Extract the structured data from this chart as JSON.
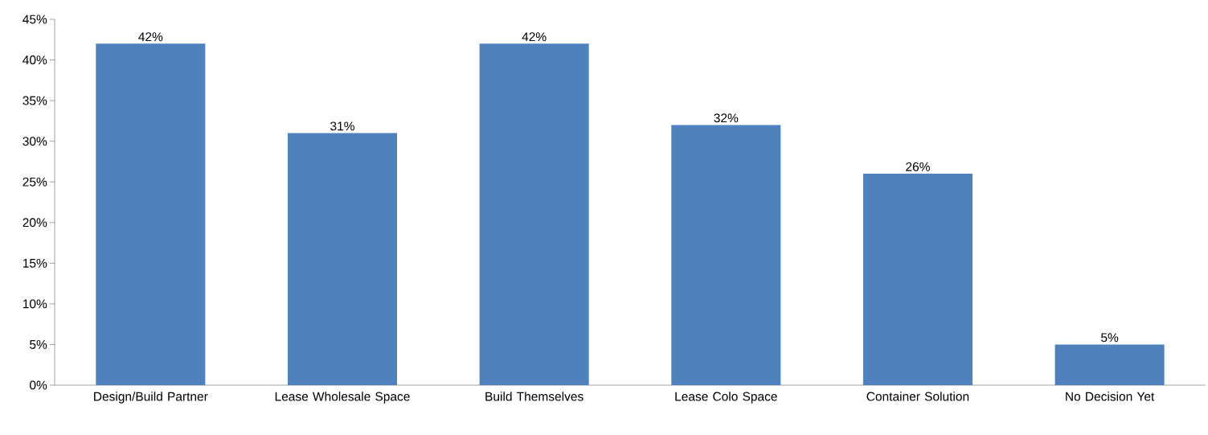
{
  "chart_data": {
    "type": "bar",
    "categories": [
      "Design/Build Partner",
      "Lease Wholesale Space",
      "Build Themselves",
      "Lease Colo Space",
      "Container Solution",
      "No Decision Yet"
    ],
    "values": [
      42,
      31,
      42,
      32,
      26,
      5
    ],
    "value_labels": [
      "42%",
      "31%",
      "42%",
      "32%",
      "26%",
      "5%"
    ],
    "color": "#4f81bd",
    "ylim": [
      0,
      45
    ],
    "yticks": [
      {
        "value": 0,
        "label": "0%"
      },
      {
        "value": 5,
        "label": "5%"
      },
      {
        "value": 10,
        "label": "10%"
      },
      {
        "value": 15,
        "label": "15%"
      },
      {
        "value": 20,
        "label": "20%"
      },
      {
        "value": 25,
        "label": "25%"
      },
      {
        "value": 30,
        "label": "30%"
      },
      {
        "value": 35,
        "label": "35%"
      },
      {
        "value": 40,
        "label": "40%"
      },
      {
        "value": 45,
        "label": "45%"
      }
    ]
  }
}
